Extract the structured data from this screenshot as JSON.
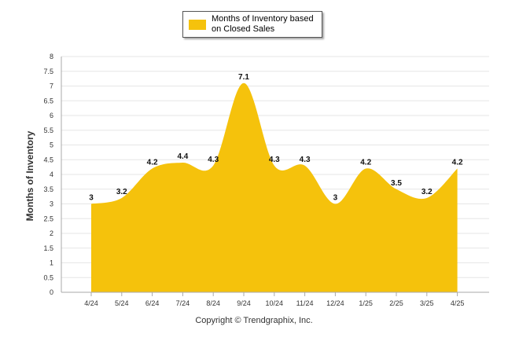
{
  "chart_data": {
    "type": "area",
    "title": "",
    "xlabel": "",
    "ylabel": "Months of Inventory",
    "ylim": [
      0,
      8
    ],
    "ytick_step": 0.5,
    "categories": [
      "4/24",
      "5/24",
      "6/24",
      "7/24",
      "8/24",
      "9/24",
      "10/24",
      "11/24",
      "12/24",
      "1/25",
      "2/25",
      "3/25",
      "4/25"
    ],
    "series": [
      {
        "name": "Months of Inventory based on Closed Sales",
        "values": [
          3,
          3.2,
          4.2,
          4.4,
          4.3,
          7.1,
          4.3,
          4.3,
          3,
          4.2,
          3.5,
          3.2,
          4.2
        ],
        "color": "#F5C20C"
      }
    ],
    "legend_position": "top-center",
    "grid": true
  },
  "legend": {
    "label": "Months of Inventory based on Closed Sales",
    "color": "#F5C20C"
  },
  "footer": {
    "copyright": "Copyright © Trendgraphix, Inc."
  }
}
